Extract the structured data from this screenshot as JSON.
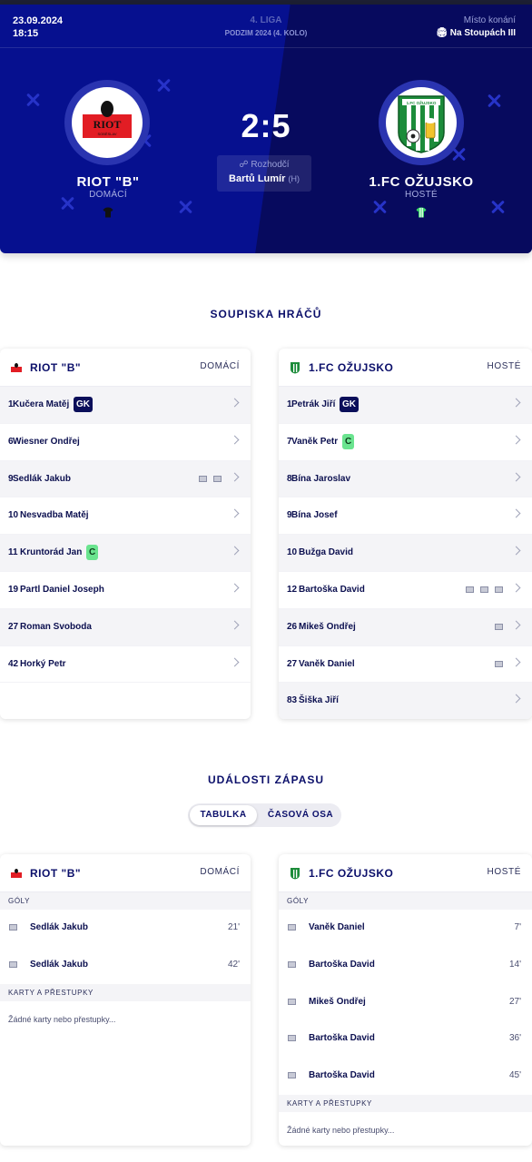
{
  "match": {
    "date": "23.09.2024",
    "time": "18:15",
    "league": "4. LIGA",
    "round": "PODZIM 2024 (4. KOLO)",
    "venue_label": "Místo konání",
    "venue": "Na Stoupách III",
    "score": "2:5",
    "referee_label": "Rozhodčí",
    "referee": "Bartů Lumír",
    "referee_tag": "(H)"
  },
  "home": {
    "name": "RIOT \"B\"",
    "role": "DOMÁCÍ",
    "logo_text": "RIOT",
    "logo_sub": "SOBĚSLAV"
  },
  "away": {
    "name": "1.FC OŽUJSKO",
    "role": "HOSTÉ"
  },
  "roster": {
    "title": "SOUPISKA HRÁČŮ",
    "home_team": "RIOT \"B\"",
    "home_role": "DOMÁCÍ",
    "away_team": "1.FC OŽUJSKO",
    "away_role": "HOSTÉ",
    "home_players": [
      {
        "num": "1",
        "name": "Kučera Matěj",
        "badge": "GK",
        "goals": 0
      },
      {
        "num": "6",
        "name": "Wiesner Ondřej",
        "badge": "",
        "goals": 0
      },
      {
        "num": "9",
        "name": "Sedlák Jakub",
        "badge": "",
        "goals": 2
      },
      {
        "num": "10",
        "name": "Nesvadba Matěj",
        "badge": "",
        "goals": 0
      },
      {
        "num": "11",
        "name": "Kruntorád Jan",
        "badge": "C",
        "goals": 0
      },
      {
        "num": "19",
        "name": "Partl Daniel Joseph",
        "badge": "",
        "goals": 0
      },
      {
        "num": "27",
        "name": "Roman Svoboda",
        "badge": "",
        "goals": 0
      },
      {
        "num": "42",
        "name": "Horký Petr",
        "badge": "",
        "goals": 0
      }
    ],
    "away_players": [
      {
        "num": "1",
        "name": "Petrák Jiří",
        "badge": "GK",
        "goals": 0
      },
      {
        "num": "7",
        "name": "Vaněk Petr",
        "badge": "C",
        "goals": 0
      },
      {
        "num": "8",
        "name": "Bína Jaroslav",
        "badge": "",
        "goals": 0
      },
      {
        "num": "9",
        "name": "Bína Josef",
        "badge": "",
        "goals": 0
      },
      {
        "num": "10",
        "name": "Bužga David",
        "badge": "",
        "goals": 0
      },
      {
        "num": "12",
        "name": "Bartoška David",
        "badge": "",
        "goals": 3
      },
      {
        "num": "26",
        "name": "Mikeš Ondřej",
        "badge": "",
        "goals": 1
      },
      {
        "num": "27",
        "name": "Vaněk Daniel",
        "badge": "",
        "goals": 1
      },
      {
        "num": "83",
        "name": "Šiška Jiří",
        "badge": "",
        "goals": 0
      }
    ]
  },
  "events": {
    "title": "UDÁLOSTI ZÁPASU",
    "tab_table": "TABULKA",
    "tab_timeline": "ČASOVÁ OSA",
    "goals_label": "GÓLY",
    "cards_label": "KARTY A PŘESTUPKY",
    "no_cards": "Žádné karty nebo přestupky...",
    "home_goals": [
      {
        "name": "Sedlák Jakub",
        "minute": "21'"
      },
      {
        "name": "Sedlák Jakub",
        "minute": "42'"
      }
    ],
    "away_goals": [
      {
        "name": "Vaněk Daniel",
        "minute": "7'"
      },
      {
        "name": "Bartoška David",
        "minute": "14'"
      },
      {
        "name": "Mikeš Ondřej",
        "minute": "27'"
      },
      {
        "name": "Bartoška David",
        "minute": "36'"
      },
      {
        "name": "Bartoška David",
        "minute": "45'"
      }
    ]
  },
  "colors": {
    "hero": "#06108f",
    "navy": "#0b0f6a",
    "gk_badge": "#0b0f5a",
    "captain_badge": "#6ae48f"
  }
}
